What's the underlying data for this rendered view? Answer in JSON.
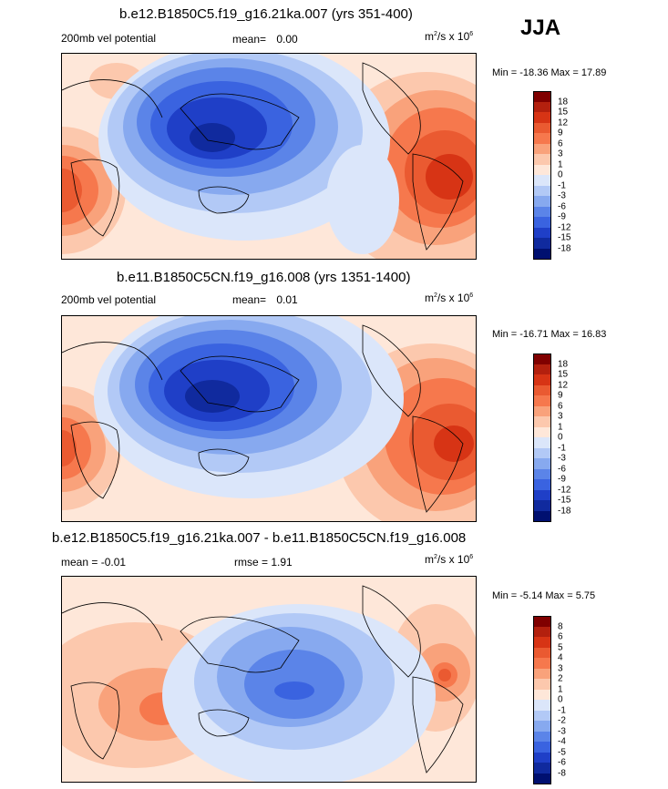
{
  "season": "JJA",
  "panels": [
    {
      "title": "b.e12.B1850C5.f19_g16.21ka.007 (yrs 351-400)",
      "left_label": "200mb vel potential",
      "mean_label": "mean=",
      "mean_value": "0.00",
      "units_base": "m",
      "units_exp": "2",
      "units_mid": "/s x 10",
      "units_pow": "6",
      "minmax": "Min = -18.36 Max =  17.89",
      "colorbar": [
        "18",
        "15",
        "12",
        "9",
        "6",
        "3",
        "1",
        "0",
        "-1",
        "-3",
        "-6",
        "-9",
        "-12",
        "-15",
        "-18"
      ]
    },
    {
      "title": "b.e11.B1850C5CN.f19_g16.008 (yrs 1351-1400)",
      "left_label": "200mb vel potential",
      "mean_label": "mean=",
      "mean_value": "0.01",
      "units_base": "m",
      "units_exp": "2",
      "units_mid": "/s x 10",
      "units_pow": "6",
      "minmax": "Min = -16.71 Max =  16.83",
      "colorbar": [
        "18",
        "15",
        "12",
        "9",
        "6",
        "3",
        "1",
        "0",
        "-1",
        "-3",
        "-6",
        "-9",
        "-12",
        "-15",
        "-18"
      ]
    },
    {
      "title": "b.e12.B1850C5.f19_g16.21ka.007 - b.e11.B1850C5CN.f19_g16.008",
      "left_label": "mean =  -0.01",
      "rmse_label": "rmse =   1.91",
      "units_base": "m",
      "units_exp": "2",
      "units_mid": "/s x 10",
      "units_pow": "6",
      "minmax": "Min =  -5.14 Max =   5.75",
      "colorbar": [
        "8",
        "6",
        "5",
        "4",
        "3",
        "2",
        "1",
        "0",
        "-1",
        "-2",
        "-3",
        "-4",
        "-5",
        "-6",
        "-8"
      ]
    }
  ],
  "chart_data": {
    "type": "heatmap",
    "variable": "200mb velocity potential",
    "units": "m2/s x 10^6",
    "season": "JJA",
    "maps": [
      {
        "title": "b.e12.B1850C5.f19_g16.21ka.007 (yrs 351-400)",
        "mean": 0.0,
        "min": -18.36,
        "max": 17.89,
        "levels": [
          -18,
          -15,
          -12,
          -9,
          -6,
          -3,
          -1,
          0,
          1,
          3,
          6,
          9,
          12,
          15,
          18
        ]
      },
      {
        "title": "b.e11.B1850C5CN.f19_g16.008 (yrs 1351-1400)",
        "mean": 0.01,
        "min": -16.71,
        "max": 16.83,
        "levels": [
          -18,
          -15,
          -12,
          -9,
          -6,
          -3,
          -1,
          0,
          1,
          3,
          6,
          9,
          12,
          15,
          18
        ]
      },
      {
        "title": "b.e12.B1850C5.f19_g16.21ka.007 - b.e11.B1850C5CN.f19_g16.008",
        "mean": -0.01,
        "rmse": 1.91,
        "min": -5.14,
        "max": 5.75,
        "levels": [
          -8,
          -6,
          -5,
          -4,
          -3,
          -2,
          -1,
          0,
          1,
          2,
          3,
          4,
          5,
          6,
          8
        ]
      }
    ]
  },
  "colors": {
    "scale": [
      "#800000",
      "#b3200e",
      "#d73415",
      "#ea5a31",
      "#f6784d",
      "#f9a27b",
      "#fcc8ad",
      "#fee7d9",
      "#dbe6fa",
      "#b2c9f6",
      "#87a9ef",
      "#5b84e8",
      "#3a63e0",
      "#1f3fc7",
      "#102a9e",
      "#001070"
    ]
  }
}
